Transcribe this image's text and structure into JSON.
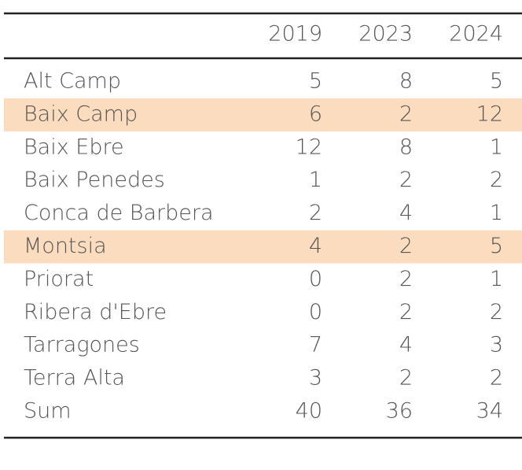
{
  "table": {
    "columns": [
      "",
      "2019",
      "2023",
      "2024"
    ],
    "rows": [
      {
        "cells": [
          "Alt Camp",
          5,
          8,
          5
        ],
        "highlight": false
      },
      {
        "cells": [
          "Baix Camp",
          6,
          2,
          12
        ],
        "highlight": true
      },
      {
        "cells": [
          "Baix Ebre",
          12,
          8,
          1
        ],
        "highlight": false
      },
      {
        "cells": [
          "Baix Penedes",
          1,
          2,
          2
        ],
        "highlight": false
      },
      {
        "cells": [
          "Conca de Barbera",
          2,
          4,
          1
        ],
        "highlight": false
      },
      {
        "cells": [
          "Montsia",
          4,
          2,
          5
        ],
        "highlight": true
      },
      {
        "cells": [
          "Priorat",
          0,
          2,
          1
        ],
        "highlight": false
      },
      {
        "cells": [
          "Ribera d'Ebre",
          0,
          2,
          2
        ],
        "highlight": false
      },
      {
        "cells": [
          "Tarragones",
          7,
          4,
          3
        ],
        "highlight": false
      },
      {
        "cells": [
          "Terra Alta",
          3,
          2,
          2
        ],
        "highlight": false
      },
      {
        "cells": [
          "Sum",
          40,
          36,
          34
        ],
        "highlight": false
      }
    ],
    "highlight_color": "#fcdcbf"
  }
}
